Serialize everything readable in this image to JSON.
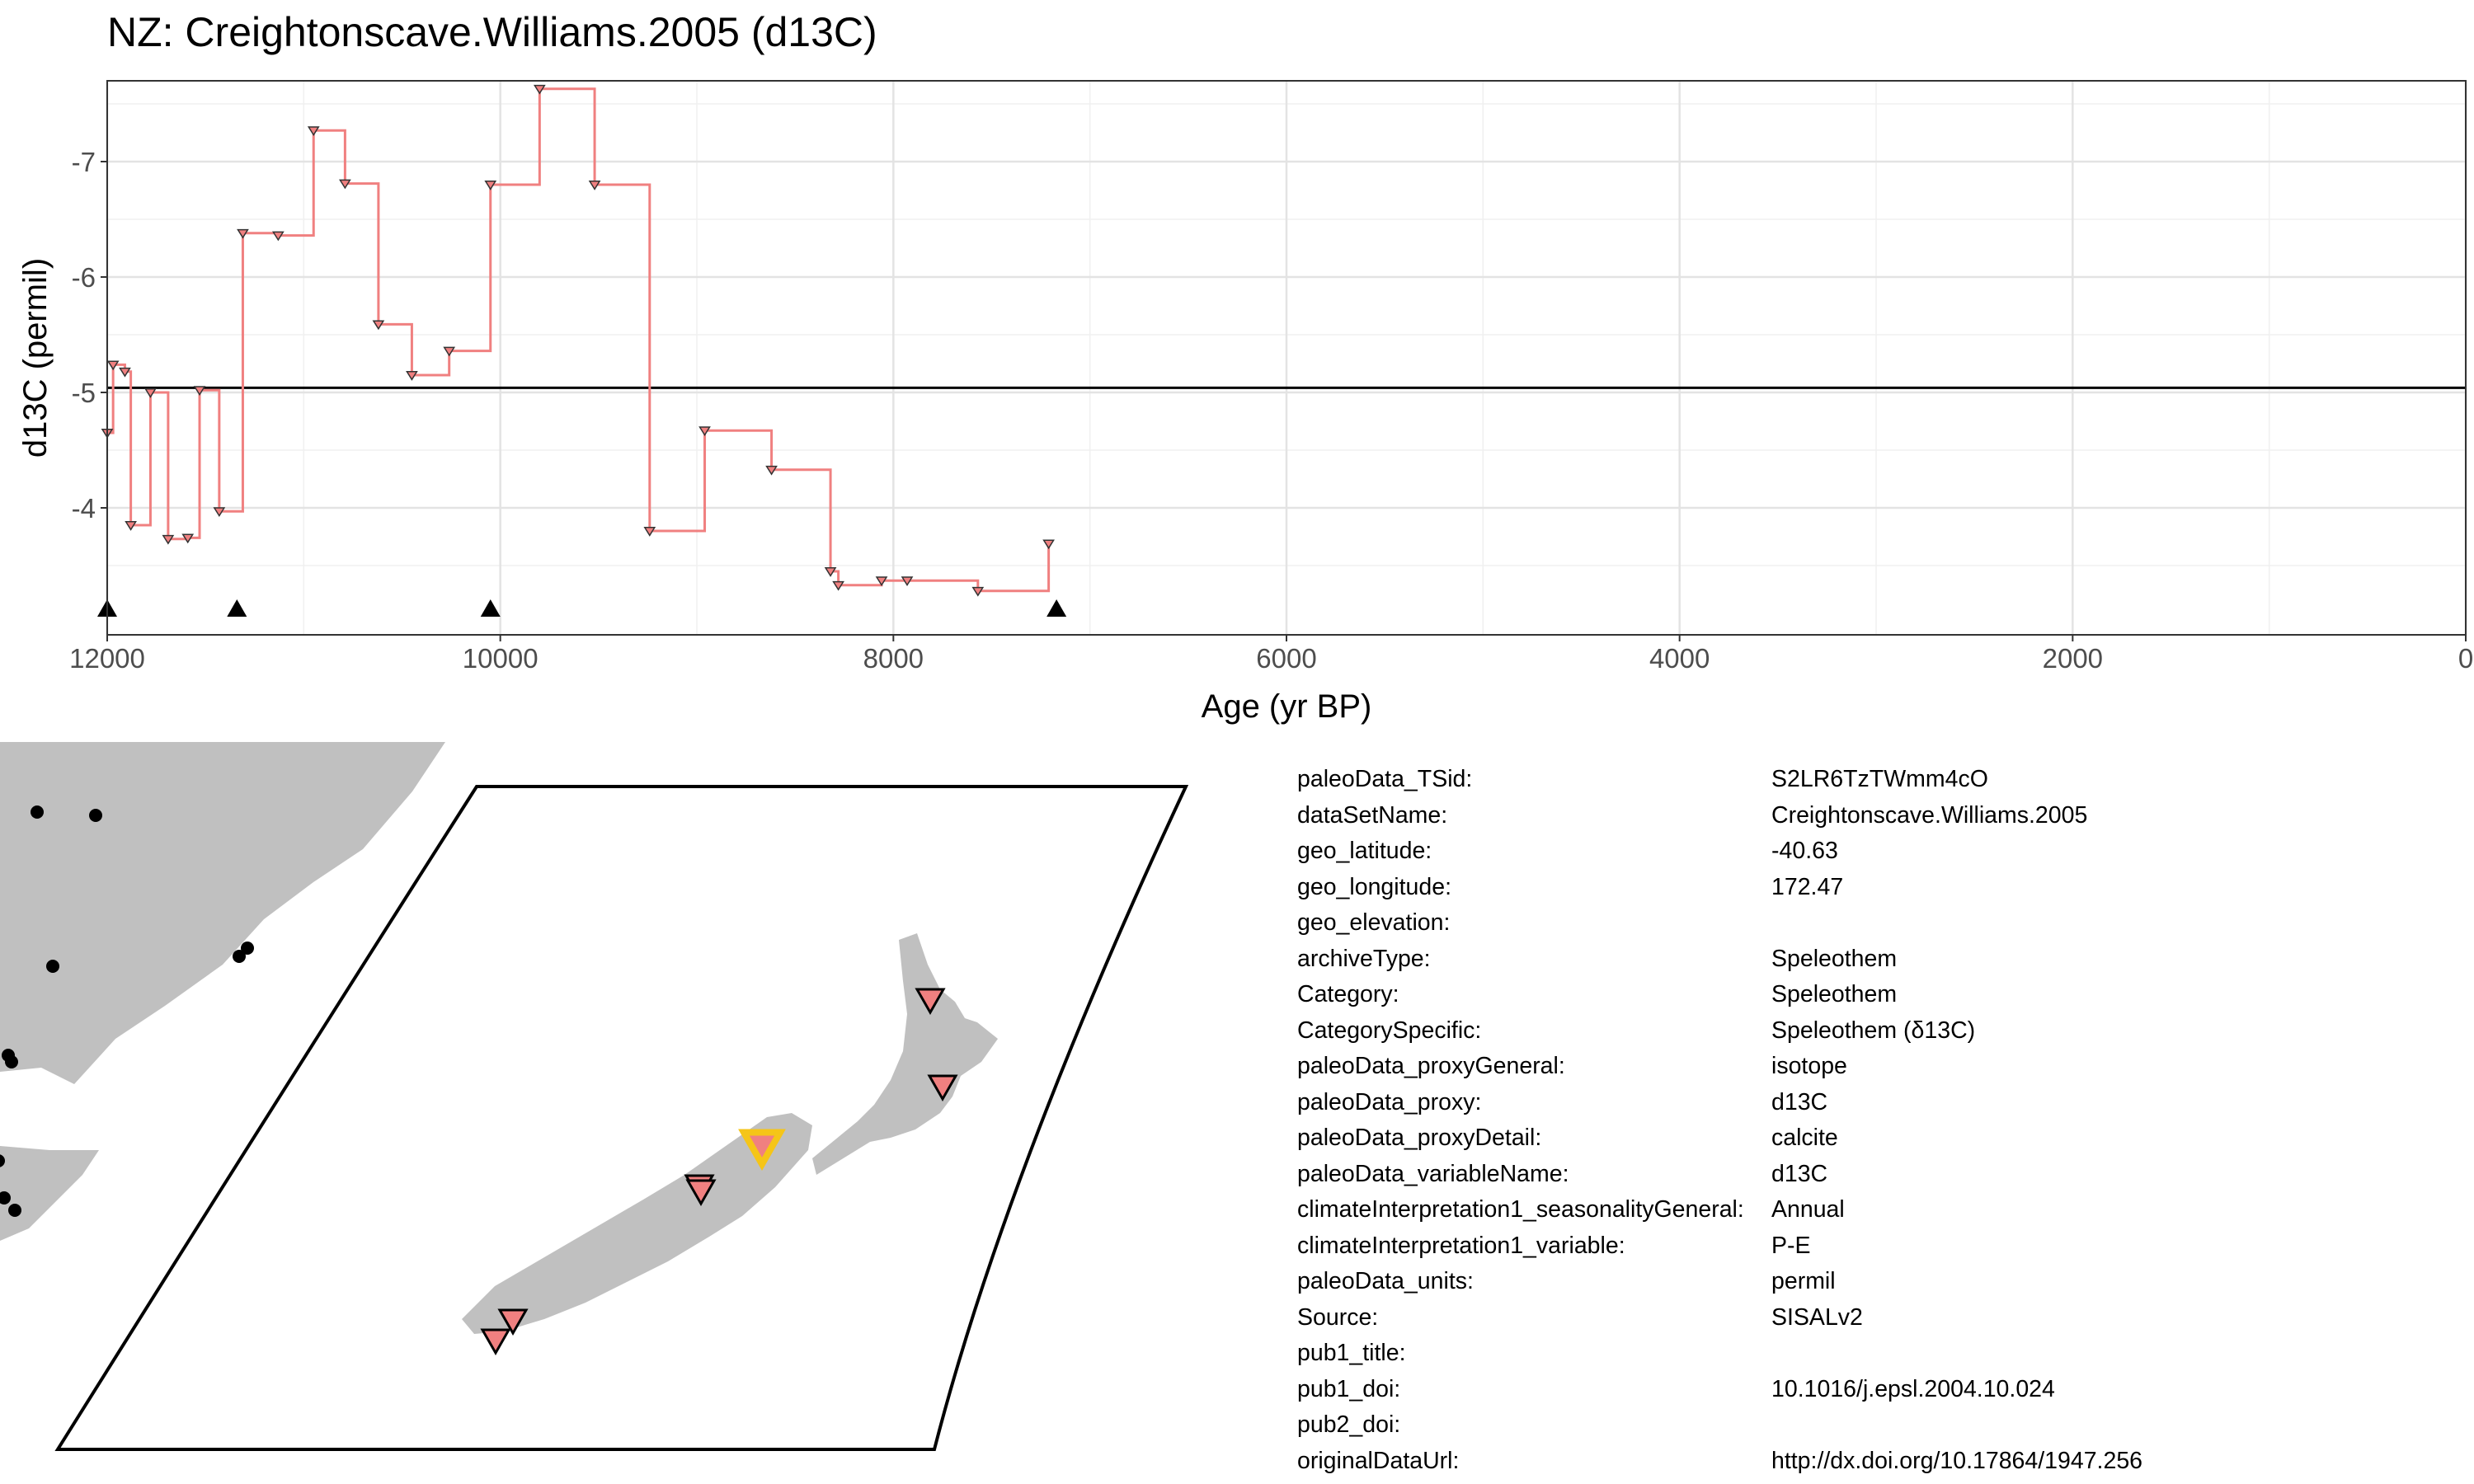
{
  "title": "NZ: Creightonscave.Williams.2005 (d13C)",
  "chart_data": {
    "type": "step",
    "xlabel": "Age (yr BP)",
    "ylabel": "d13C (permil)",
    "xlim": [
      12000,
      0
    ],
    "x_reversed": true,
    "ylim": [
      -7.7,
      -2.9
    ],
    "y_reversed": true,
    "x_ticks": [
      12000,
      10000,
      8000,
      6000,
      4000,
      2000,
      0
    ],
    "y_ticks": [
      -7,
      -6,
      -5,
      -4
    ],
    "reference_line": -5.04,
    "grid": true,
    "series": [
      {
        "line_color": "#f08080",
        "marker": "down-triangle",
        "points": [
          {
            "x": 12000,
            "y": -4.65
          },
          {
            "x": 11970,
            "y": -5.24
          },
          {
            "x": 11910,
            "y": -5.18
          },
          {
            "x": 11880,
            "y": -3.85
          },
          {
            "x": 11780,
            "y": -5.0
          },
          {
            "x": 11690,
            "y": -3.73
          },
          {
            "x": 11590,
            "y": -3.74
          },
          {
            "x": 11530,
            "y": -5.02
          },
          {
            "x": 11430,
            "y": -3.97
          },
          {
            "x": 11310,
            "y": -6.38
          },
          {
            "x": 11130,
            "y": -6.36
          },
          {
            "x": 10950,
            "y": -7.27
          },
          {
            "x": 10790,
            "y": -6.81
          },
          {
            "x": 10620,
            "y": -5.59
          },
          {
            "x": 10450,
            "y": -5.15
          },
          {
            "x": 10260,
            "y": -5.36
          },
          {
            "x": 10050,
            "y": -6.8
          },
          {
            "x": 9800,
            "y": -7.63
          },
          {
            "x": 9520,
            "y": -6.8
          },
          {
            "x": 9240,
            "y": -3.8
          },
          {
            "x": 8960,
            "y": -4.67
          },
          {
            "x": 8620,
            "y": -4.33
          },
          {
            "x": 8320,
            "y": -3.45
          },
          {
            "x": 8280,
            "y": -3.33
          },
          {
            "x": 8060,
            "y": -3.37
          },
          {
            "x": 7930,
            "y": -3.37
          },
          {
            "x": 7570,
            "y": -3.28
          },
          {
            "x": 7210,
            "y": -3.69
          }
        ]
      }
    ],
    "age_control_points": [
      12000,
      11340,
      10050,
      7170
    ]
  },
  "map": {
    "land_color": "#c0c0c0",
    "other_site_color": "#000000",
    "site_marker_color": "#f08080",
    "highlight_marker_color": "#f5c518"
  },
  "metadata": [
    {
      "key": "paleoData_TSid:",
      "value": "S2LR6TzTWmm4cO"
    },
    {
      "key": "dataSetName:",
      "value": "Creightonscave.Williams.2005"
    },
    {
      "key": "geo_latitude:",
      "value": "-40.63"
    },
    {
      "key": "geo_longitude:",
      "value": "172.47"
    },
    {
      "key": "geo_elevation:",
      "value": ""
    },
    {
      "key": "archiveType:",
      "value": "Speleothem"
    },
    {
      "key": "Category:",
      "value": "Speleothem"
    },
    {
      "key": "CategorySpecific:",
      "value": "Speleothem (δ13C)"
    },
    {
      "key": "paleoData_proxyGeneral:",
      "value": "isotope"
    },
    {
      "key": "paleoData_proxy:",
      "value": "d13C"
    },
    {
      "key": "paleoData_proxyDetail:",
      "value": "calcite"
    },
    {
      "key": "paleoData_variableName:",
      "value": "d13C"
    },
    {
      "key": "climateInterpretation1_seasonalityGeneral:",
      "value": "Annual"
    },
    {
      "key": "climateInterpretation1_variable:",
      "value": "P-E"
    },
    {
      "key": "paleoData_units:",
      "value": "permil"
    },
    {
      "key": "Source:",
      "value": "SISALv2"
    },
    {
      "key": "pub1_title:",
      "value": ""
    },
    {
      "key": "pub1_doi:",
      "value": "10.1016/j.epsl.2004.10.024"
    },
    {
      "key": "pub2_doi:",
      "value": ""
    },
    {
      "key": "originalDataUrl:",
      "value": "http://dx.doi.org/10.17864/1947.256"
    }
  ]
}
